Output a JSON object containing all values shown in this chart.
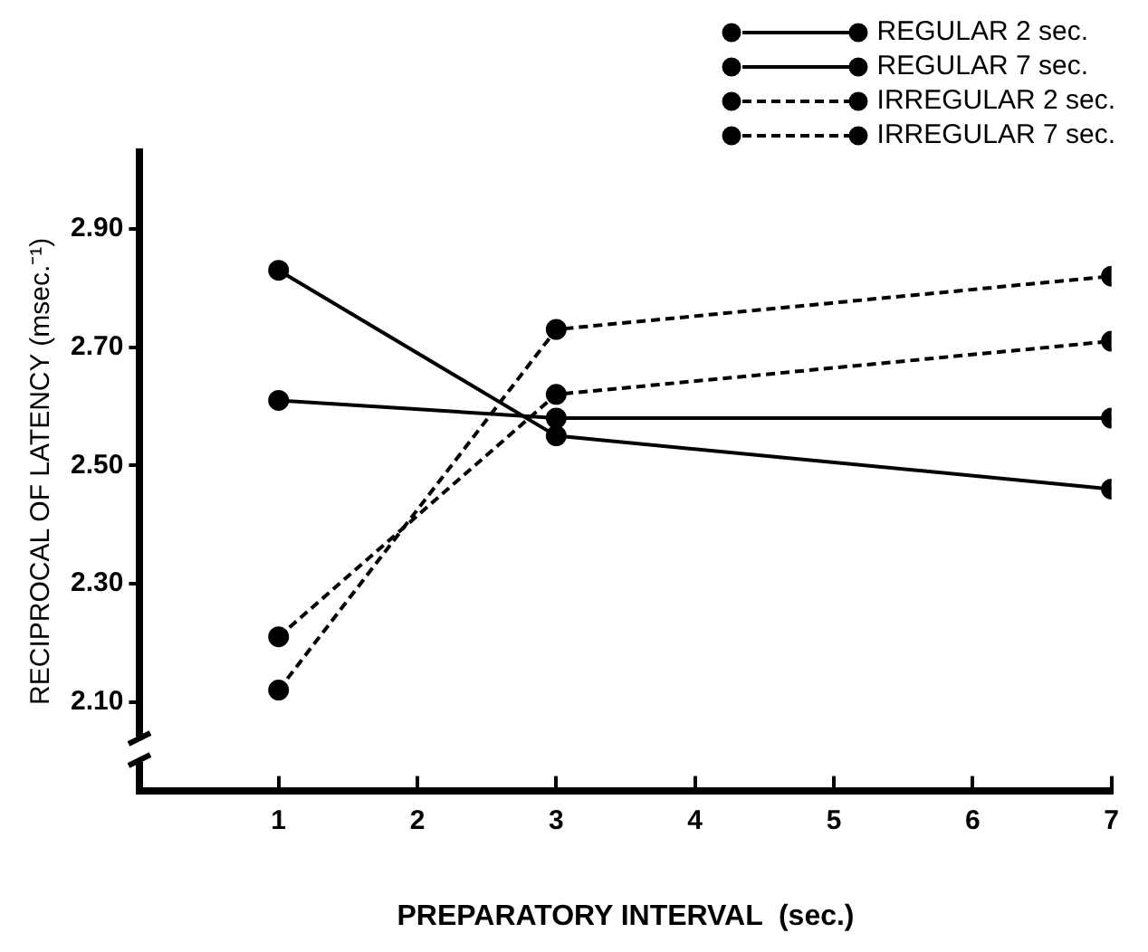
{
  "chart_data": {
    "type": "line",
    "xlabel": "PREPARATORY INTERVAL  (sec.)",
    "ylabel": "RECIPROCAL OF LATENCY (msec.⁻¹)",
    "x": [
      1,
      3,
      7
    ],
    "xlim": [
      0,
      7
    ],
    "xticks": [
      1,
      2,
      3,
      4,
      5,
      6,
      7
    ],
    "ylim": [
      1.95,
      3.03
    ],
    "yticks": [
      {
        "value": 2.1,
        "label": "2.10"
      },
      {
        "value": 2.3,
        "label": "2.30"
      },
      {
        "value": 2.5,
        "label": "2.50"
      },
      {
        "value": 2.7,
        "label": "2.70"
      },
      {
        "value": 2.9,
        "label": "2.90"
      }
    ],
    "grid": false,
    "legend": "top right",
    "marker": "circle",
    "series": [
      {
        "name": "REGULAR 2 sec.",
        "color": "#000000",
        "line_style": "solid",
        "values": [
          2.83,
          2.55,
          2.46
        ]
      },
      {
        "name": "REGULAR 7 sec.",
        "color": "#000000",
        "line_style": "solid",
        "values": [
          2.61,
          2.58,
          2.58
        ]
      },
      {
        "name": "IRREGULAR 2 sec.",
        "color": "#000000",
        "line_style": "dashed",
        "values": [
          2.12,
          2.73,
          2.82
        ]
      },
      {
        "name": "IRREGULAR 7 sec.",
        "color": "#000000",
        "line_style": "dashed",
        "values": [
          2.21,
          2.62,
          2.71
        ]
      }
    ]
  }
}
